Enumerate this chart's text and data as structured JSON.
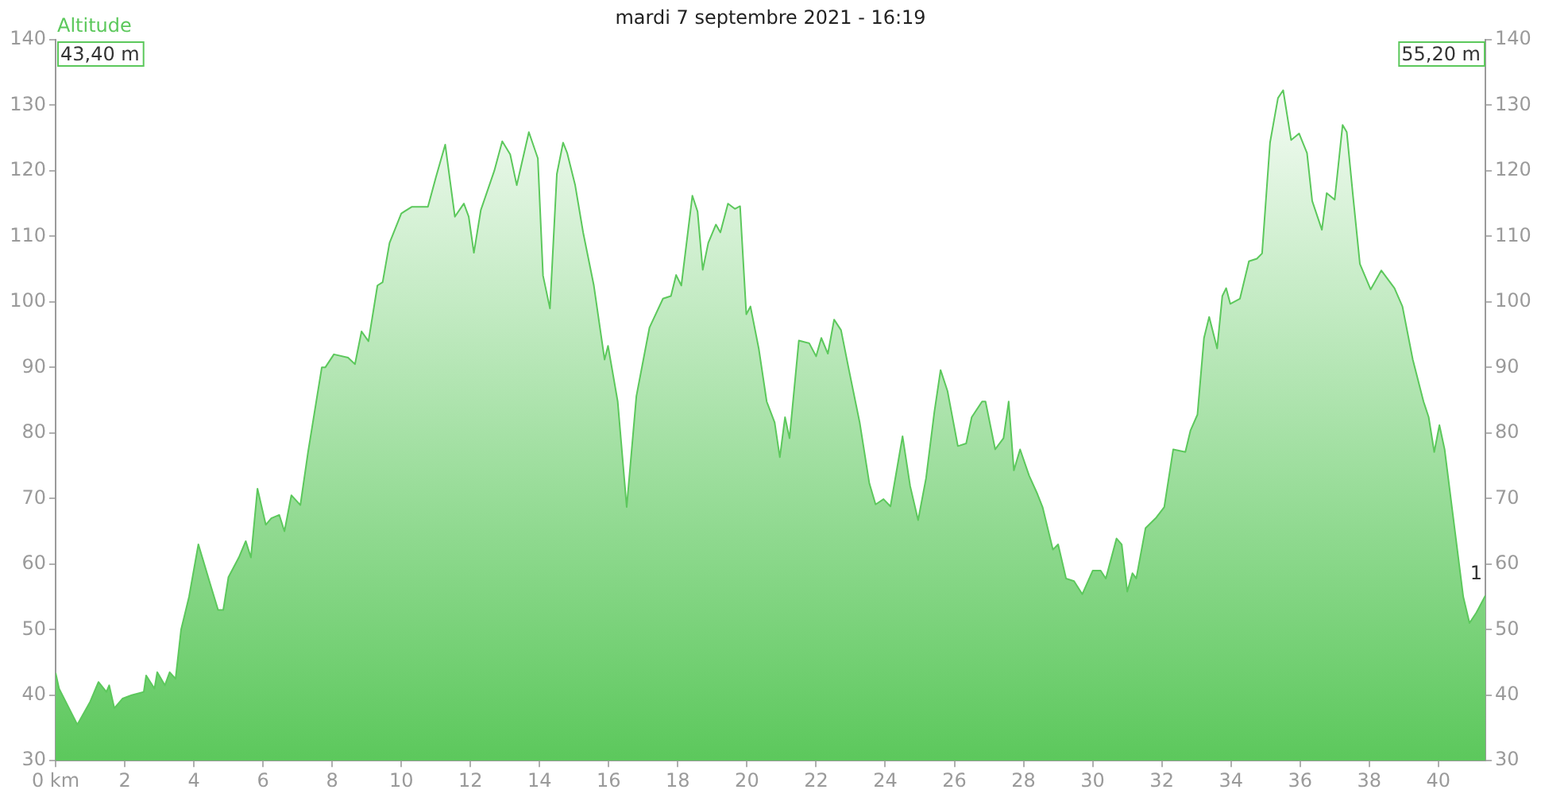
{
  "chart_data": {
    "type": "area",
    "title": "mardi 7 septembre 2021 - 16:19",
    "ylabel": "Altitude",
    "x": [
      0,
      0.1,
      0.63,
      1.0,
      1.24,
      1.47,
      1.55,
      1.7,
      1.94,
      2.2,
      2.55,
      2.62,
      2.86,
      2.94,
      3.16,
      3.3,
      3.47,
      3.63,
      3.86,
      4.13,
      4.47,
      4.7,
      4.85,
      5.0,
      5.3,
      5.5,
      5.65,
      5.84,
      6.08,
      6.24,
      6.47,
      6.62,
      6.82,
      7.08,
      7.3,
      7.7,
      7.8,
      8.05,
      8.46,
      8.66,
      8.85,
      9.05,
      9.31,
      9.46,
      9.66,
      10.0,
      10.3,
      10.77,
      11.0,
      11.27,
      11.55,
      11.81,
      11.95,
      12.1,
      12.3,
      12.69,
      12.92,
      13.15,
      13.34,
      13.69,
      13.95,
      14.1,
      14.3,
      14.5,
      14.68,
      14.8,
      15.03,
      15.26,
      15.57,
      15.88,
      15.98,
      16.26,
      16.52,
      16.8,
      17.18,
      17.57,
      17.8,
      17.95,
      18.1,
      18.42,
      18.57,
      18.72,
      18.88,
      19.1,
      19.23,
      19.45,
      19.65,
      19.8,
      19.98,
      20.1,
      20.34,
      20.57,
      20.8,
      20.95,
      21.1,
      21.23,
      21.5,
      21.8,
      22.0,
      22.15,
      22.34,
      22.52,
      22.72,
      22.95,
      23.26,
      23.54,
      23.72,
      23.95,
      24.15,
      24.5,
      24.72,
      24.95,
      25.18,
      25.42,
      25.6,
      25.8,
      26.1,
      26.34,
      26.5,
      26.8,
      26.9,
      27.18,
      27.42,
      27.57,
      27.72,
      27.9,
      28.16,
      28.4,
      28.55,
      28.85,
      29.0,
      29.23,
      29.46,
      29.7,
      30.0,
      30.23,
      30.38,
      30.69,
      30.84,
      31.0,
      31.15,
      31.26,
      31.53,
      31.84,
      32.07,
      32.33,
      32.68,
      32.83,
      33.03,
      33.22,
      33.37,
      33.6,
      33.75,
      33.86,
      33.98,
      34.26,
      34.52,
      34.75,
      34.9,
      35.13,
      35.36,
      35.51,
      35.74,
      35.97,
      36.2,
      36.35,
      36.63,
      36.77,
      37.0,
      37.23,
      37.35,
      37.53,
      37.73,
      38.04,
      38.35,
      38.73,
      38.96,
      39.26,
      39.57,
      39.72,
      39.88,
      40.03,
      40.18,
      40.41,
      40.72,
      40.9,
      41.1,
      41.36
    ],
    "series": [
      {
        "color": "#5cc85c",
        "values": [
          43.4,
          41,
          35.5,
          39,
          42,
          40.5,
          41.5,
          38,
          39.5,
          40,
          40.5,
          43,
          41,
          43.5,
          41.5,
          43.5,
          42.5,
          50,
          55,
          63,
          57,
          53,
          53,
          58,
          61,
          63.5,
          61,
          71.5,
          66,
          67,
          67.5,
          65,
          70.5,
          69,
          77,
          90,
          90,
          92,
          91.5,
          90.5,
          95.5,
          94,
          102.5,
          103,
          109,
          113.5,
          114.5,
          114.5,
          119,
          124,
          113,
          115,
          113,
          107.5,
          114,
          120,
          124.5,
          122.5,
          117.8,
          125.9,
          121.9,
          104,
          99,
          119.5,
          124.3,
          122.7,
          117.8,
          110.6,
          102.5,
          91.2,
          93.3,
          84.8,
          68.7,
          85.6,
          96.1,
          100.5,
          100.9,
          104.1,
          102.5,
          116.2,
          113.8,
          104.9,
          109,
          111.8,
          110.6,
          115,
          114.2,
          114.6,
          98.1,
          99.3,
          92.9,
          84.8,
          81.6,
          76.3,
          82.4,
          79.2,
          94.1,
          93.7,
          91.7,
          94.5,
          92.1,
          97.3,
          95.7,
          89.6,
          81.6,
          72.3,
          69.1,
          69.9,
          68.8,
          79.5,
          71.9,
          66.7,
          73.1,
          83.2,
          89.6,
          86.4,
          78,
          78.4,
          82.4,
          84.8,
          84.8,
          77.5,
          79.2,
          84.8,
          74.3,
          77.5,
          73.5,
          70.7,
          68.7,
          62.2,
          63,
          57.8,
          57.4,
          55.4,
          59,
          59,
          57.8,
          63.9,
          63,
          55.8,
          58.6,
          57.8,
          65.5,
          67.1,
          68.7,
          77.5,
          77.1,
          80.4,
          82.8,
          94.5,
          97.7,
          92.9,
          100.9,
          102.1,
          99.7,
          100.5,
          106.2,
          106.6,
          107.4,
          124.3,
          131.1,
          132.3,
          124.7,
          125.7,
          122.7,
          115.4,
          111,
          116.6,
          115.6,
          127,
          125.9,
          116.2,
          105.8,
          101.9,
          104.8,
          102.1,
          99.3,
          91.2,
          84.8,
          82.4,
          77.1,
          81.2,
          77.5,
          67.9,
          55,
          51,
          52.6,
          55.2
        ]
      }
    ],
    "xlim": [
      0,
      41.36
    ],
    "xticks": [
      {
        "value": 0,
        "label": "0 km"
      },
      2,
      4,
      6,
      8,
      10,
      12,
      14,
      16,
      18,
      20,
      22,
      24,
      26,
      28,
      30,
      32,
      34,
      36,
      38,
      40
    ],
    "ylim": [
      30,
      140
    ],
    "yticks": [
      30,
      40,
      50,
      60,
      70,
      80,
      90,
      100,
      110,
      120,
      130,
      140
    ],
    "y2lim": [
      30,
      140
    ],
    "y2ticks": [
      30,
      40,
      50,
      60,
      70,
      80,
      90,
      100,
      110,
      120,
      130,
      140
    ],
    "grid": false,
    "legend": false,
    "marker": "none",
    "line_style": "solid",
    "annotations": [
      "43,40 m",
      "55,20 m",
      {
        "text": "1",
        "x": 41.36,
        "y": 55.2
      }
    ]
  }
}
